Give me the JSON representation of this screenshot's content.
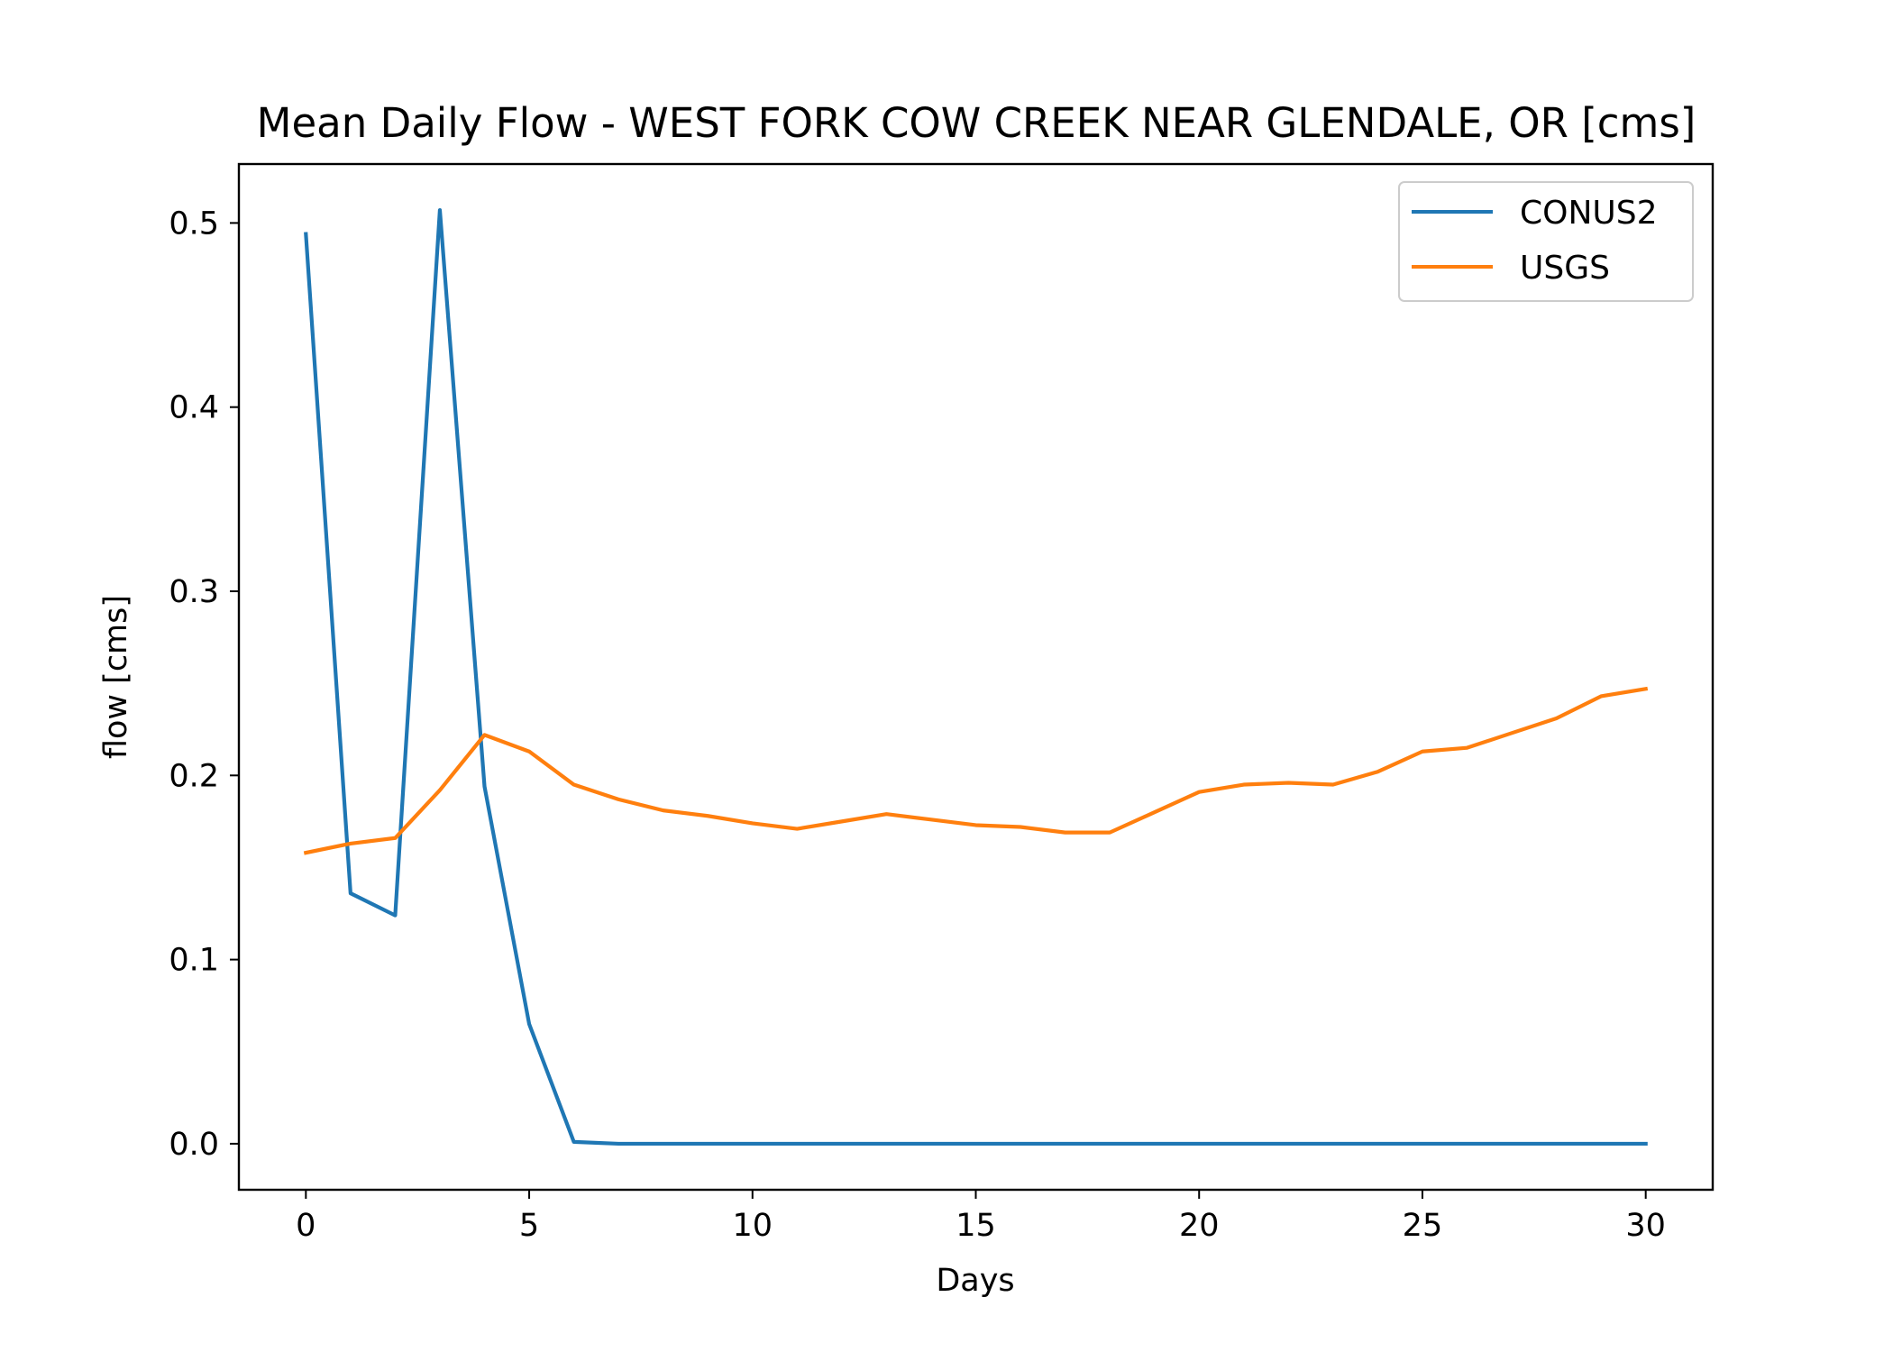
{
  "chart_data": {
    "type": "line",
    "title": "Mean Daily Flow - WEST FORK COW CREEK NEAR GLENDALE, OR [cms]",
    "xlabel": "Days",
    "ylabel": "flow [cms]",
    "xlim": [
      -1.5,
      31.5
    ],
    "ylim": [
      -0.025,
      0.532
    ],
    "xticks": [
      0,
      5,
      10,
      15,
      20,
      25,
      30
    ],
    "yticks": [
      0.0,
      0.1,
      0.2,
      0.3,
      0.4,
      0.5
    ],
    "xtick_labels": [
      "0",
      "5",
      "10",
      "15",
      "20",
      "25",
      "30"
    ],
    "ytick_labels": [
      "0.0",
      "0.1",
      "0.2",
      "0.3",
      "0.4",
      "0.5"
    ],
    "grid": false,
    "legend_position": "top-right",
    "x": [
      0,
      1,
      2,
      3,
      4,
      5,
      6,
      7,
      8,
      9,
      10,
      11,
      12,
      13,
      14,
      15,
      16,
      17,
      18,
      19,
      20,
      21,
      22,
      23,
      24,
      25,
      26,
      27,
      28,
      29,
      30
    ],
    "series": [
      {
        "name": "CONUS2",
        "color": "#1f77b4",
        "values": [
          0.494,
          0.136,
          0.124,
          0.507,
          0.194,
          0.065,
          0.001,
          0.0,
          0.0,
          0.0,
          0.0,
          0.0,
          0.0,
          0.0,
          0.0,
          0.0,
          0.0,
          0.0,
          0.0,
          0.0,
          0.0,
          0.0,
          0.0,
          0.0,
          0.0,
          0.0,
          0.0,
          0.0,
          0.0,
          0.0,
          0.0
        ]
      },
      {
        "name": "USGS",
        "color": "#ff7f0e",
        "values": [
          0.158,
          0.163,
          0.166,
          0.192,
          0.222,
          0.213,
          0.195,
          0.187,
          0.181,
          0.178,
          0.174,
          0.171,
          0.175,
          0.179,
          0.176,
          0.173,
          0.172,
          0.169,
          0.169,
          0.18,
          0.191,
          0.195,
          0.196,
          0.195,
          0.202,
          0.213,
          0.215,
          0.223,
          0.231,
          0.243,
          0.247
        ]
      }
    ]
  }
}
